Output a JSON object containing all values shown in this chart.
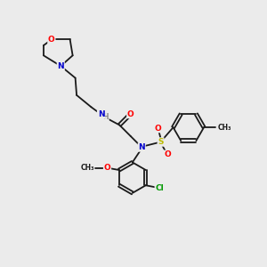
{
  "bg_color": "#ebebeb",
  "bond_color": "#1a1a1a",
  "atom_colors": {
    "O": "#ff0000",
    "N": "#0000cc",
    "S": "#bbbb00",
    "Cl": "#009900",
    "H": "#888888",
    "C": "#1a1a1a"
  },
  "figsize": [
    3.0,
    3.0
  ],
  "dpi": 100
}
